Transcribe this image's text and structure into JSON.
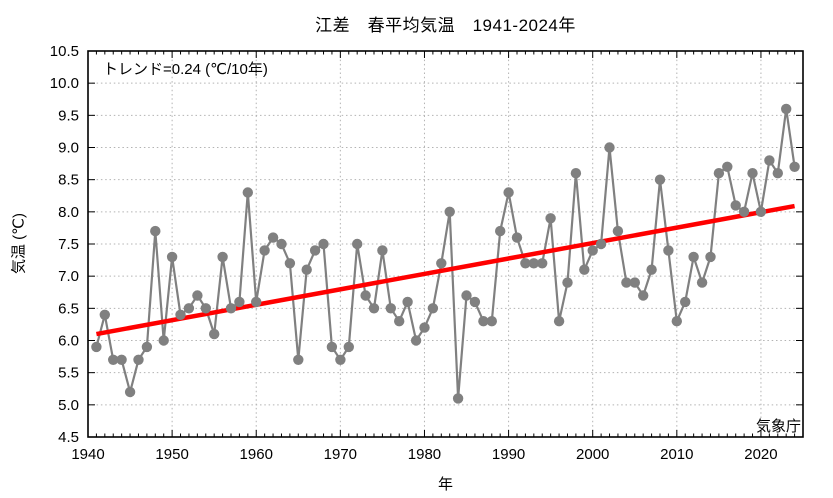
{
  "title": "江差　春平均気温　1941-2024年",
  "annotations": {
    "trend_label": "トレンド=0.24 (℃/10年)",
    "source_label": "気象庁"
  },
  "colors": {
    "series": "#808080",
    "trend": "#ff0000",
    "grid": "#b3b3b3",
    "axis": "#000000",
    "background": "#ffffff"
  },
  "chart_data": {
    "type": "line",
    "title": "江差　春平均気温　1941-2024年",
    "xlabel": "年",
    "ylabel": "気温 (℃)",
    "x_range": [
      1940,
      2025
    ],
    "y_range": [
      4.5,
      10.5
    ],
    "x_ticks": [
      1940,
      1950,
      1960,
      1970,
      1980,
      1990,
      2000,
      2010,
      2020
    ],
    "y_ticks": [
      4.5,
      5.0,
      5.5,
      6.0,
      6.5,
      7.0,
      7.5,
      8.0,
      8.5,
      9.0,
      9.5,
      10.0,
      10.5
    ],
    "grid": true,
    "legend_position": "none",
    "series": [
      {
        "name": "春平均気温",
        "start_year": 1941,
        "end_year": 2024,
        "values": [
          5.9,
          6.4,
          5.7,
          5.7,
          5.2,
          5.7,
          5.9,
          7.7,
          6.0,
          7.3,
          6.4,
          6.5,
          6.7,
          6.5,
          6.1,
          7.3,
          6.5,
          6.6,
          8.3,
          6.6,
          7.4,
          7.6,
          7.5,
          7.2,
          5.7,
          7.1,
          7.4,
          7.5,
          5.9,
          5.7,
          5.9,
          7.5,
          6.7,
          6.5,
          7.4,
          6.5,
          6.3,
          6.6,
          6.0,
          6.2,
          6.5,
          7.2,
          8.0,
          5.1,
          6.7,
          6.6,
          6.3,
          6.3,
          7.7,
          8.3,
          7.6,
          7.2,
          7.2,
          7.2,
          7.9,
          6.3,
          6.9,
          8.6,
          7.1,
          7.4,
          7.5,
          9.0,
          7.7,
          6.9,
          6.9,
          6.7,
          7.1,
          8.5,
          7.4,
          6.3,
          6.6,
          7.3,
          6.9,
          7.3,
          8.6,
          8.7,
          8.1,
          8.0,
          8.6,
          8.0,
          8.8,
          8.6,
          9.6,
          8.7
        ]
      }
    ],
    "trend": {
      "label": "トレンド=0.24 (℃/10年)",
      "slope_per_decade": 0.24,
      "start": {
        "year": 1941,
        "value": 6.1
      },
      "end": {
        "year": 2024,
        "value": 8.09
      }
    }
  }
}
